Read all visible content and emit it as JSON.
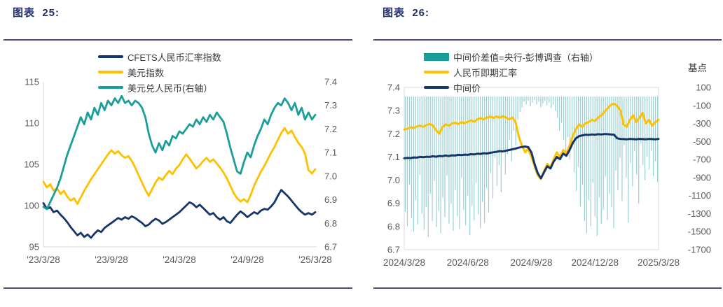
{
  "theme": {
    "title_color": "#1F2D69",
    "rule_color": "#4F4587",
    "axis_label_color": "#595959",
    "legend_text_color": "#3A3A3A",
    "plot_border_color": "#D9D9D9"
  },
  "chart_data": [
    {
      "id": "fig25",
      "figure_label": "图表  25:",
      "type": "line",
      "x_tick_labels": [
        "'23/3/28",
        "'23/9/28",
        "'24/3/28",
        "'24/9/28",
        "'25/3/28"
      ],
      "left_axis": {
        "tick_labels": [
          "115",
          "110",
          "105",
          "100",
          "95"
        ],
        "min": 95,
        "max": 115
      },
      "right_axis": {
        "tick_labels": [
          "7.4",
          "7.3",
          "7.2",
          "7.1",
          "7.0",
          "6.9",
          "6.8",
          "6.7"
        ],
        "min": 6.7,
        "max": 7.4
      },
      "grid": false,
      "legend_position": "top",
      "series": [
        {
          "name": "CFETS人民币汇率指数",
          "type": "line",
          "axis": "left",
          "color": "#16356B",
          "values": [
            100.3,
            99.6,
            99.8,
            99.2,
            99.4,
            98.9,
            98.5,
            98.0,
            97.4,
            96.9,
            96.4,
            96.7,
            96.2,
            96.5,
            96.1,
            96.6,
            97.0,
            96.8,
            97.3,
            97.6,
            97.9,
            98.2,
            98.5,
            98.3,
            98.6,
            98.4,
            98.7,
            98.5,
            98.2,
            97.9,
            97.5,
            97.7,
            98.1,
            98.4,
            98.2,
            97.8,
            98.0,
            98.3,
            98.6,
            98.9,
            99.2,
            99.6,
            100.0,
            100.4,
            100.2,
            99.8,
            100.1,
            99.7,
            99.3,
            98.9,
            99.1,
            98.6,
            98.3,
            98.6,
            98.1,
            97.9,
            98.4,
            98.9,
            99.3,
            99.0,
            98.6,
            98.9,
            99.2,
            99.0,
            99.4,
            99.6,
            99.5,
            99.9,
            100.4,
            101.2,
            101.9,
            101.5,
            101.1,
            100.6,
            100.1,
            99.6,
            99.2,
            98.9,
            99.1,
            98.9,
            99.2
          ]
        },
        {
          "name": "美元指数",
          "type": "line",
          "axis": "left",
          "color": "#FFC000",
          "values": [
            102.9,
            102.2,
            102.6,
            101.8,
            102.1,
            101.4,
            101.8,
            101.1,
            100.6,
            100.9,
            100.2,
            101.0,
            101.8,
            102.5,
            103.2,
            103.8,
            104.4,
            105.0,
            105.6,
            106.2,
            106.7,
            106.3,
            106.6,
            106.1,
            105.8,
            106.0,
            105.4,
            104.6,
            103.7,
            102.8,
            101.9,
            101.2,
            102.0,
            102.8,
            103.4,
            103.1,
            103.7,
            104.2,
            103.8,
            104.5,
            104.9,
            105.6,
            106.2,
            105.7,
            105.1,
            104.5,
            104.9,
            105.4,
            105.8,
            105.3,
            105.6,
            105.1,
            104.6,
            104.0,
            103.3,
            102.4,
            101.5,
            100.9,
            100.5,
            100.8,
            100.4,
            101.3,
            102.4,
            103.3,
            104.1,
            104.8,
            105.6,
            106.4,
            107.1,
            108.0,
            108.8,
            109.4,
            108.7,
            109.1,
            108.3,
            107.6,
            107.1,
            106.3,
            104.3,
            103.9,
            104.4
          ]
        },
        {
          "name": "美元兑人民币(右轴）",
          "type": "line",
          "axis": "right",
          "color": "#1A9E9A",
          "values": [
            6.87,
            6.86,
            6.89,
            6.92,
            6.95,
            6.99,
            7.04,
            7.09,
            7.13,
            7.17,
            7.21,
            7.25,
            7.22,
            7.27,
            7.24,
            7.29,
            7.26,
            7.31,
            7.28,
            7.32,
            7.3,
            7.33,
            7.31,
            7.34,
            7.31,
            7.32,
            7.3,
            7.32,
            7.31,
            7.29,
            7.25,
            7.18,
            7.13,
            7.1,
            7.14,
            7.11,
            7.15,
            7.13,
            7.17,
            7.16,
            7.19,
            7.18,
            7.2,
            7.22,
            7.21,
            7.24,
            7.22,
            7.25,
            7.23,
            7.26,
            7.24,
            7.27,
            7.25,
            7.23,
            7.18,
            7.12,
            7.07,
            7.02,
            7.01,
            7.06,
            7.1,
            7.08,
            7.13,
            7.17,
            7.2,
            7.24,
            7.22,
            7.26,
            7.29,
            7.31,
            7.3,
            7.33,
            7.31,
            7.28,
            7.31,
            7.26,
            7.29,
            7.24,
            7.27,
            7.24,
            7.26
          ]
        }
      ]
    },
    {
      "id": "fig26",
      "figure_label": "图表  26:",
      "type": "line+bar",
      "x_tick_labels": [
        "2024/3/28",
        "2024/6/28",
        "2024/9/28",
        "2024/12/28",
        "2025/3/28"
      ],
      "left_axis": {
        "tick_labels": [
          "7.4",
          "7.3",
          "7.2",
          "7.1",
          "7.0",
          "6.9",
          "6.8",
          "6.7"
        ],
        "min": 6.7,
        "max": 7.4
      },
      "right_axis": {
        "label": "基点",
        "tick_labels": [
          "100",
          "-100",
          "-300",
          "-500",
          "-700",
          "-900",
          "-1100",
          "-1300",
          "-1500",
          "-1700"
        ],
        "min": -1700,
        "max": 100
      },
      "grid": false,
      "legend_position": "top",
      "series": [
        {
          "name": "中间价差值=央行-彭博调查（右轴）",
          "type": "bar",
          "axis": "right",
          "color": "#96D1D3",
          "legend_color": "#1A9E9A",
          "values": [
            -1280,
            -1440,
            -980,
            -1350,
            -1500,
            -1150,
            -1420,
            -870,
            -1300,
            -1480,
            -1230,
            -1560,
            -1080,
            -1380,
            -940,
            -1450,
            -1270,
            -1520,
            -1120,
            -1340,
            -880,
            -1410,
            -1190,
            -1490,
            -1040,
            -1330,
            -1470,
            -900,
            -1260,
            -1430,
            -1100,
            -1540,
            -1210,
            -1370,
            -960,
            -1310,
            -1460,
            -1170,
            -1400,
            -1020,
            -1290,
            -850,
            -1130,
            -680,
            -990,
            -760,
            -1060,
            -590,
            -870,
            -640,
            -480,
            -720,
            -380,
            -540,
            -260,
            -170,
            -120,
            -60,
            -90,
            -50,
            -110,
            -70,
            -40,
            -90,
            -60,
            -120,
            -80,
            -50,
            -100,
            -70,
            -130,
            -90,
            -160,
            -240,
            -380,
            -290,
            -480,
            -620,
            -450,
            -700,
            -560,
            -840,
            -1050,
            -780,
            -1220,
            -980,
            -1380,
            -1520,
            -1150,
            -1440,
            -960,
            -1330,
            -1550,
            -1120,
            -1410,
            -1260,
            -890,
            -1370,
            -1080,
            -1230,
            -1460,
            -820,
            -1040,
            -680,
            -1160,
            -540,
            -900,
            -1400,
            -740,
            -1000,
            -610,
            -870,
            -1190,
            -520,
            -760,
            -930,
            -670,
            -810,
            -600,
            -880,
            -720,
            -950
          ]
        },
        {
          "name": "人民币即期汇率",
          "type": "line",
          "axis": "left",
          "color": "#FFC000",
          "values": [
            7.218,
            7.222,
            7.228,
            7.225,
            7.232,
            7.235,
            7.23,
            7.238,
            7.242,
            7.236,
            7.215,
            7.2,
            7.228,
            7.24,
            7.235,
            7.244,
            7.248,
            7.242,
            7.25,
            7.246,
            7.252,
            7.258,
            7.252,
            7.262,
            7.268,
            7.262,
            7.27,
            7.274,
            7.268,
            7.275,
            7.27,
            7.276,
            7.27,
            7.262,
            7.27,
            7.252,
            7.19,
            7.15,
            7.12,
            7.135,
            7.1,
            7.06,
            7.02,
            7.005,
            7.04,
            7.07,
            7.055,
            7.09,
            7.12,
            7.1,
            7.13,
            7.115,
            7.15,
            7.19,
            7.22,
            7.24,
            7.23,
            7.245,
            7.25,
            7.26,
            7.255,
            7.27,
            7.28,
            7.295,
            7.31,
            7.325,
            7.33,
            7.32,
            7.3,
            7.24,
            7.23,
            7.26,
            7.28,
            7.25,
            7.27,
            7.29,
            7.245,
            7.26,
            7.235,
            7.25,
            7.26
          ]
        },
        {
          "name": "中间价",
          "type": "line",
          "axis": "left",
          "color": "#16356B",
          "values": [
            7.094,
            7.096,
            7.095,
            7.098,
            7.097,
            7.1,
            7.099,
            7.101,
            7.1,
            7.103,
            7.101,
            7.104,
            7.103,
            7.106,
            7.104,
            7.107,
            7.106,
            7.109,
            7.108,
            7.11,
            7.109,
            7.112,
            7.111,
            7.114,
            7.113,
            7.116,
            7.115,
            7.118,
            7.12,
            7.122,
            7.125,
            7.124,
            7.127,
            7.13,
            7.133,
            7.136,
            7.14,
            7.143,
            7.145,
            7.142,
            7.12,
            7.07,
            7.03,
            7.008,
            7.035,
            7.06,
            7.05,
            7.08,
            7.1,
            7.09,
            7.115,
            7.105,
            7.13,
            7.16,
            7.18,
            7.19,
            7.193,
            7.196,
            7.195,
            7.197,
            7.196,
            7.198,
            7.197,
            7.199,
            7.198,
            7.197,
            7.196,
            7.18,
            7.178,
            7.177,
            7.176,
            7.178,
            7.177,
            7.176,
            7.178,
            7.177,
            7.176,
            7.178,
            7.177,
            7.176,
            7.178
          ]
        }
      ]
    }
  ]
}
